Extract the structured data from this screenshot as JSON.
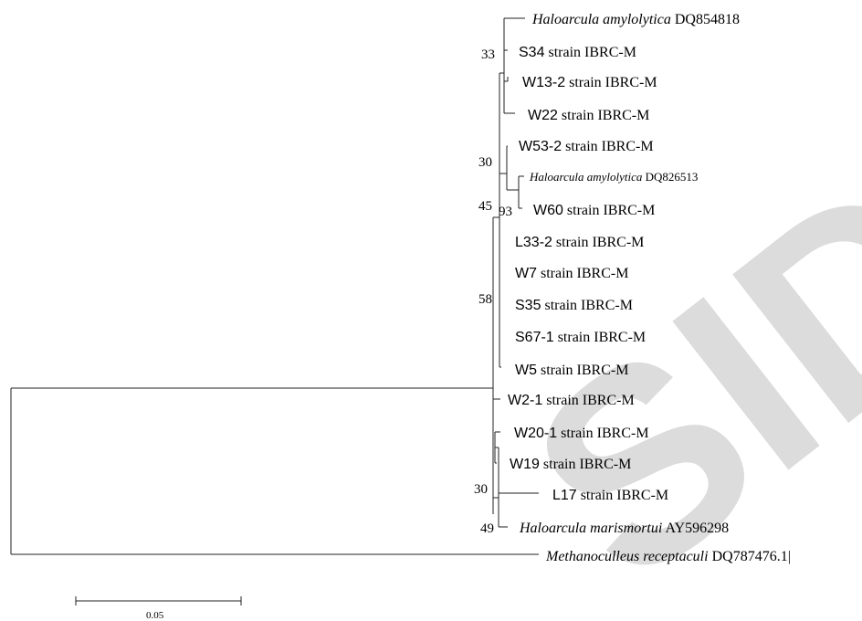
{
  "tree": {
    "leaves": [
      {
        "id": "",
        "italic": "Haloarcula amylolytica",
        "rest": "DQ854818"
      },
      {
        "id": "S34",
        "italic": "",
        "rest": "strain IBRC-M"
      },
      {
        "id": "W13-2",
        "italic": "",
        "rest": "strain IBRC-M"
      },
      {
        "id": "W22",
        "italic": "",
        "rest": "strain IBRC-M"
      },
      {
        "id": "W53-2",
        "italic": "",
        "rest": "strain IBRC-M"
      },
      {
        "id": "",
        "italic": "Haloarcula amylolytica",
        "rest": "DQ826513"
      },
      {
        "id": "W60",
        "italic": "",
        "rest": "strain IBRC-M"
      },
      {
        "id": "L33-2",
        "italic": "",
        "rest": "strain IBRC-M"
      },
      {
        "id": "W7",
        "italic": "",
        "rest": "strain IBRC-M"
      },
      {
        "id": "S35",
        "italic": "",
        "rest": "strain IBRC-M"
      },
      {
        "id": "S67-1",
        "italic": "",
        "rest": "strain IBRC-M"
      },
      {
        "id": "W5",
        "italic": "",
        "rest": "strain IBRC-M"
      },
      {
        "id": "W2-1",
        "italic": "",
        "rest": "strain IBRC-M"
      },
      {
        "id": "W20-1",
        "italic": "",
        "rest": "strain IBRC-M"
      },
      {
        "id": "W19",
        "italic": "",
        "rest": "strain IBRC-M"
      },
      {
        "id": "L17",
        "italic": "",
        "rest": "strain IBRC-M"
      },
      {
        "id": "",
        "italic": "Haloarcula marismortui",
        "rest": "AY596298"
      },
      {
        "id": "",
        "italic": "Methanoculleus receptaculi",
        "rest": "DQ787476.1|"
      }
    ],
    "bootstrap": [
      "33",
      "30",
      "93",
      "45",
      "58",
      "30",
      "49"
    ],
    "scale_bar_label": "0.05"
  },
  "watermark": {
    "text": "SID"
  },
  "colors": {
    "line": "#222222",
    "text": "#000000",
    "watermark": "#d9d9d9"
  }
}
